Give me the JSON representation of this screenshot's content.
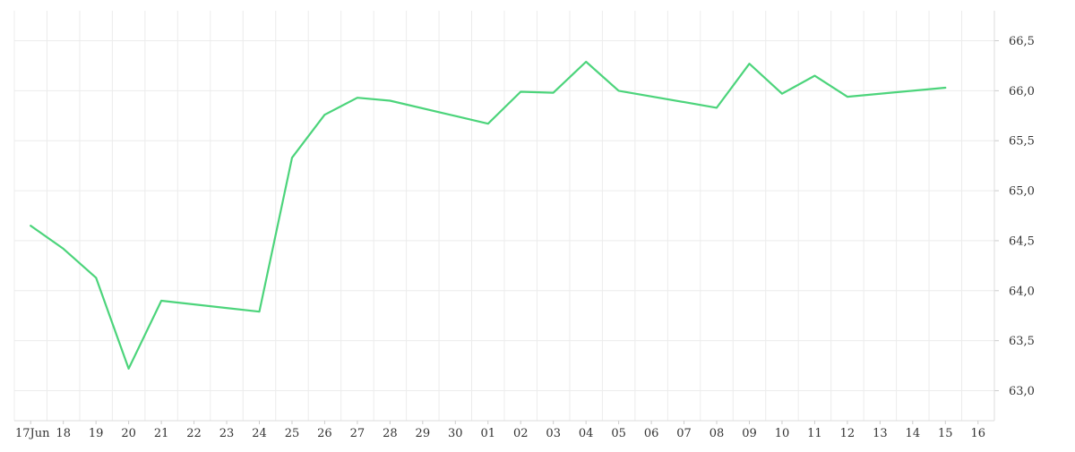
{
  "chart_data": {
    "type": "line",
    "title": "",
    "xlabel": "",
    "ylabel": "",
    "grid": true,
    "x_ticks": [
      "17Jun",
      "18",
      "19",
      "20",
      "21",
      "22",
      "23",
      "24",
      "25",
      "26",
      "27",
      "28",
      "29",
      "30",
      "01",
      "02",
      "03",
      "04",
      "05",
      "06",
      "07",
      "08",
      "09",
      "10",
      "11",
      "12",
      "13",
      "14",
      "15",
      "16"
    ],
    "y_ticks": [
      "63,0",
      "63,5",
      "64,0",
      "64,5",
      "65,0",
      "65,5",
      "66,0",
      "66,5"
    ],
    "y_tick_values": [
      63.0,
      63.5,
      64.0,
      64.5,
      65.0,
      65.5,
      66.0,
      66.5
    ],
    "ylim": [
      62.7,
      66.8
    ],
    "xlim": [
      "2024-06-16T12:00",
      "2024-07-16T12:00"
    ],
    "series": [
      {
        "color": "#4cd47b",
        "points": [
          {
            "x": "2024-06-17T00:00",
            "y": 64.65
          },
          {
            "x": "2024-06-18T00:00",
            "y": 64.42
          },
          {
            "x": "2024-06-19T00:00",
            "y": 64.13
          },
          {
            "x": "2024-06-20T00:00",
            "y": 63.22
          },
          {
            "x": "2024-06-21T00:00",
            "y": 63.9
          },
          {
            "x": "2024-06-24T00:00",
            "y": 63.79
          },
          {
            "x": "2024-06-25T00:00",
            "y": 65.33
          },
          {
            "x": "2024-06-26T00:00",
            "y": 65.76
          },
          {
            "x": "2024-06-27T00:00",
            "y": 65.93
          },
          {
            "x": "2024-06-28T00:00",
            "y": 65.9
          },
          {
            "x": "2024-07-01T00:00",
            "y": 65.67
          },
          {
            "x": "2024-07-02T00:00",
            "y": 65.99
          },
          {
            "x": "2024-07-03T00:00",
            "y": 65.98
          },
          {
            "x": "2024-07-04T00:00",
            "y": 66.29
          },
          {
            "x": "2024-07-05T00:00",
            "y": 66.0
          },
          {
            "x": "2024-07-08T00:00",
            "y": 65.83
          },
          {
            "x": "2024-07-09T00:00",
            "y": 66.27
          },
          {
            "x": "2024-07-10T00:00",
            "y": 65.97
          },
          {
            "x": "2024-07-11T00:00",
            "y": 66.15
          },
          {
            "x": "2024-07-12T00:00",
            "y": 65.94
          },
          {
            "x": "2024-07-15T00:00",
            "y": 66.03
          }
        ]
      }
    ]
  }
}
